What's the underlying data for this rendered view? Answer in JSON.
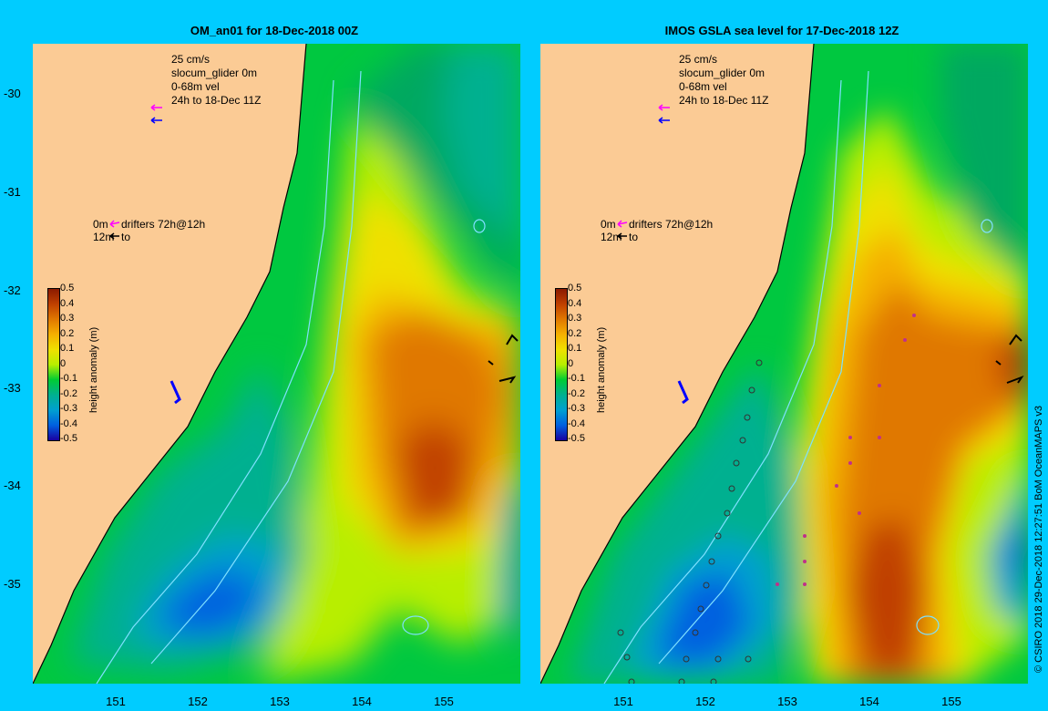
{
  "panels": [
    {
      "title": "OM_an01 for 18-Dec-2018 00Z"
    },
    {
      "title": "IMOS GSLA sea level  for 17-Dec-2018 12Z"
    }
  ],
  "legend": {
    "scale": "25 cm/s",
    "glider": "slocum_glider 0m",
    "vel": "0-68m vel",
    "period": "24h to 18-Dec 11Z",
    "drift_0m": "0m",
    "drift_desc": "drifters 72h@12h",
    "drift_12m": "12m",
    "drift_to": "to"
  },
  "axes": {
    "lat_labels": [
      "-30",
      "-31",
      "-32",
      "-33",
      "-34",
      "-35"
    ],
    "lon_labels": [
      "151",
      "152",
      "153",
      "154",
      "155"
    ]
  },
  "colorbar": {
    "title": "height anomaly (m)",
    "labels": [
      "0.5",
      "0.4",
      "0.3",
      "0.2",
      "0.1",
      "0",
      "-0.1",
      "-0.2",
      "-0.3",
      "-0.4",
      "-0.5"
    ],
    "colors": [
      "#8b1a00",
      "#c04000",
      "#e07800",
      "#f5b000",
      "#f0e000",
      "#b8ee00",
      "#00cc33",
      "#00b090",
      "#00a0d0",
      "#0060e0",
      "#1a00a0"
    ]
  },
  "credit": "© CSIRO 2018   29-Dec-2018 12:27:51 BoM OceanMAPS v3"
}
